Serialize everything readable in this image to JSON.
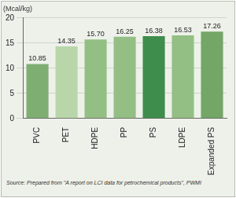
{
  "chart_data": {
    "type": "bar",
    "ylabel": "(Mcal/kg)",
    "source": "Source: Prepared from \"A report on LCI data for petrochemical products\", PWMI",
    "categories": [
      "PVC",
      "PET",
      "HDPE",
      "PP",
      "PS",
      "LDPE",
      "Expanded PS"
    ],
    "values": [
      10.85,
      14.35,
      15.7,
      16.25,
      16.38,
      16.53,
      17.26
    ],
    "value_labels": [
      "10.85",
      "14.35",
      "15.70",
      "16.25",
      "16.38",
      "16.53",
      "17.26"
    ],
    "colors": [
      "#7fae73",
      "#b9d6ab",
      "#93bf84",
      "#93bf84",
      "#3f8d4c",
      "#93bf84",
      "#74a667"
    ],
    "ylim": [
      0,
      20
    ],
    "yticks": [
      0,
      5,
      10,
      15,
      20
    ],
    "grid": true,
    "data_labels": true
  }
}
